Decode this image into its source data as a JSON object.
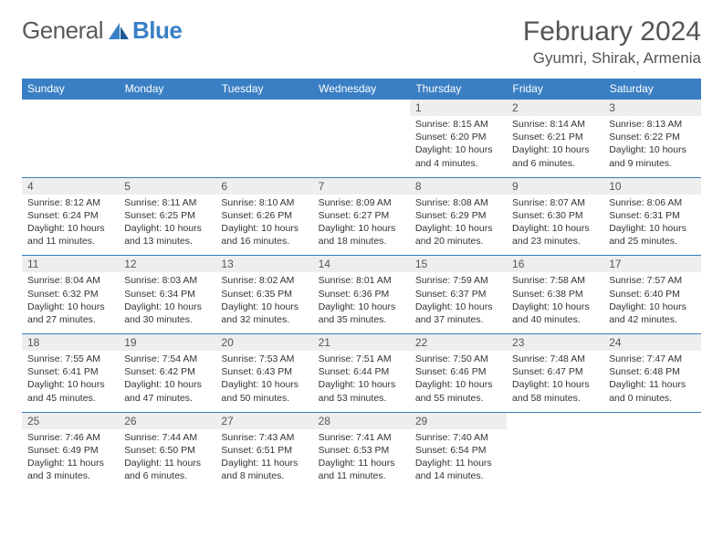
{
  "brand": {
    "part1": "General",
    "part2": "Blue"
  },
  "title": "February 2024",
  "location": "Gyumri, Shirak, Armenia",
  "day_headers": [
    "Sunday",
    "Monday",
    "Tuesday",
    "Wednesday",
    "Thursday",
    "Friday",
    "Saturday"
  ],
  "colors": {
    "header_bg": "#3a7fc4",
    "header_text": "#ffffff",
    "daynum_bg": "#eeeeee",
    "text": "#333333",
    "border": "#3a7fc4"
  },
  "weeks": [
    [
      null,
      null,
      null,
      null,
      {
        "n": "1",
        "sr": "8:15 AM",
        "ss": "6:20 PM",
        "dl": "10 hours and 4 minutes."
      },
      {
        "n": "2",
        "sr": "8:14 AM",
        "ss": "6:21 PM",
        "dl": "10 hours and 6 minutes."
      },
      {
        "n": "3",
        "sr": "8:13 AM",
        "ss": "6:22 PM",
        "dl": "10 hours and 9 minutes."
      }
    ],
    [
      {
        "n": "4",
        "sr": "8:12 AM",
        "ss": "6:24 PM",
        "dl": "10 hours and 11 minutes."
      },
      {
        "n": "5",
        "sr": "8:11 AM",
        "ss": "6:25 PM",
        "dl": "10 hours and 13 minutes."
      },
      {
        "n": "6",
        "sr": "8:10 AM",
        "ss": "6:26 PM",
        "dl": "10 hours and 16 minutes."
      },
      {
        "n": "7",
        "sr": "8:09 AM",
        "ss": "6:27 PM",
        "dl": "10 hours and 18 minutes."
      },
      {
        "n": "8",
        "sr": "8:08 AM",
        "ss": "6:29 PM",
        "dl": "10 hours and 20 minutes."
      },
      {
        "n": "9",
        "sr": "8:07 AM",
        "ss": "6:30 PM",
        "dl": "10 hours and 23 minutes."
      },
      {
        "n": "10",
        "sr": "8:06 AM",
        "ss": "6:31 PM",
        "dl": "10 hours and 25 minutes."
      }
    ],
    [
      {
        "n": "11",
        "sr": "8:04 AM",
        "ss": "6:32 PM",
        "dl": "10 hours and 27 minutes."
      },
      {
        "n": "12",
        "sr": "8:03 AM",
        "ss": "6:34 PM",
        "dl": "10 hours and 30 minutes."
      },
      {
        "n": "13",
        "sr": "8:02 AM",
        "ss": "6:35 PM",
        "dl": "10 hours and 32 minutes."
      },
      {
        "n": "14",
        "sr": "8:01 AM",
        "ss": "6:36 PM",
        "dl": "10 hours and 35 minutes."
      },
      {
        "n": "15",
        "sr": "7:59 AM",
        "ss": "6:37 PM",
        "dl": "10 hours and 37 minutes."
      },
      {
        "n": "16",
        "sr": "7:58 AM",
        "ss": "6:38 PM",
        "dl": "10 hours and 40 minutes."
      },
      {
        "n": "17",
        "sr": "7:57 AM",
        "ss": "6:40 PM",
        "dl": "10 hours and 42 minutes."
      }
    ],
    [
      {
        "n": "18",
        "sr": "7:55 AM",
        "ss": "6:41 PM",
        "dl": "10 hours and 45 minutes."
      },
      {
        "n": "19",
        "sr": "7:54 AM",
        "ss": "6:42 PM",
        "dl": "10 hours and 47 minutes."
      },
      {
        "n": "20",
        "sr": "7:53 AM",
        "ss": "6:43 PM",
        "dl": "10 hours and 50 minutes."
      },
      {
        "n": "21",
        "sr": "7:51 AM",
        "ss": "6:44 PM",
        "dl": "10 hours and 53 minutes."
      },
      {
        "n": "22",
        "sr": "7:50 AM",
        "ss": "6:46 PM",
        "dl": "10 hours and 55 minutes."
      },
      {
        "n": "23",
        "sr": "7:48 AM",
        "ss": "6:47 PM",
        "dl": "10 hours and 58 minutes."
      },
      {
        "n": "24",
        "sr": "7:47 AM",
        "ss": "6:48 PM",
        "dl": "11 hours and 0 minutes."
      }
    ],
    [
      {
        "n": "25",
        "sr": "7:46 AM",
        "ss": "6:49 PM",
        "dl": "11 hours and 3 minutes."
      },
      {
        "n": "26",
        "sr": "7:44 AM",
        "ss": "6:50 PM",
        "dl": "11 hours and 6 minutes."
      },
      {
        "n": "27",
        "sr": "7:43 AM",
        "ss": "6:51 PM",
        "dl": "11 hours and 8 minutes."
      },
      {
        "n": "28",
        "sr": "7:41 AM",
        "ss": "6:53 PM",
        "dl": "11 hours and 11 minutes."
      },
      {
        "n": "29",
        "sr": "7:40 AM",
        "ss": "6:54 PM",
        "dl": "11 hours and 14 minutes."
      },
      null,
      null
    ]
  ],
  "labels": {
    "sunrise": "Sunrise: ",
    "sunset": "Sunset: ",
    "daylight": "Daylight: "
  }
}
